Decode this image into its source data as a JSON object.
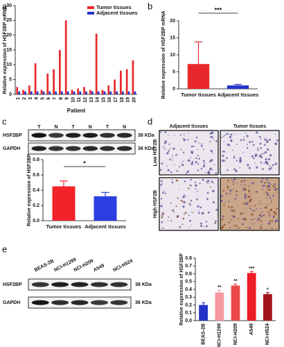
{
  "panel_labels": [
    "a",
    "b",
    "c",
    "d",
    "e"
  ],
  "chart_data": [
    {
      "type": "bar",
      "ylabel": "Relative expression of HSF2BP mRNA",
      "xlabel": "Patient",
      "categories": [
        "1",
        "2",
        "3",
        "4",
        "5",
        "6",
        "7",
        "8",
        "9",
        "10",
        "11",
        "12",
        "13",
        "14",
        "15",
        "16",
        "17",
        "18",
        "19",
        "20"
      ],
      "series": [
        {
          "name": "Tumor tissues",
          "color": "#e8272a",
          "values": [
            2.5,
            1.5,
            3,
            10.5,
            1.5,
            7,
            8.5,
            15,
            25,
            1.5,
            2,
            2.5,
            1.5,
            20.5,
            1.5,
            3,
            5,
            8,
            8.5,
            11.5
          ]
        },
        {
          "name": "Adjacent tissues",
          "color": "#2234c8",
          "values": [
            1,
            1,
            1,
            1,
            1,
            1,
            1,
            1,
            1,
            1,
            1,
            1,
            1,
            1,
            1,
            1,
            1,
            1,
            1,
            1
          ]
        }
      ],
      "ylim": [
        0,
        30
      ],
      "yticks": [
        0,
        5,
        10,
        15,
        20,
        25,
        30
      ],
      "legend": "upper right"
    },
    {
      "type": "bar",
      "ylabel": "Relative expression of HSF2BP mRNA",
      "categories": [
        "Tumor tissues",
        "Adjacent tissues"
      ],
      "values": [
        7.3,
        1.0
      ],
      "errors": [
        6.5,
        0.3
      ],
      "colors": [
        "#e8272a",
        "#2234c8"
      ],
      "comparison_label": "***",
      "ylim": [
        0,
        20
      ],
      "yticks": [
        0,
        5,
        10,
        15,
        20
      ]
    },
    {
      "type": "bar",
      "ylabel": "Relative expression of HSF2BP",
      "categories": [
        "Tumor tissues",
        "Adjacent tissues"
      ],
      "values": [
        0.45,
        0.32
      ],
      "errors": [
        0.07,
        0.05
      ],
      "colors": [
        "#f2242a",
        "#2b3fe0"
      ],
      "comparison_label": "*",
      "ylim": [
        0,
        0.8
      ],
      "yticks": [
        {
          "value": 0,
          "label": "0.0"
        },
        0.2,
        0.4,
        0.6,
        0.8
      ]
    },
    {
      "type": "bar",
      "ylabel": "Relative expression of HSF2BP",
      "categories": [
        "BEAS-2B",
        "NCI-H1299",
        "NCI-H209",
        "A549",
        "NCI-H524"
      ],
      "values": [
        0.2,
        0.36,
        0.45,
        0.61,
        0.34
      ],
      "errors": [
        0.03,
        0.03,
        0.02,
        0.02,
        0.02
      ],
      "colors": [
        "#2234c8",
        "#f59aa0",
        "#ec4a4a",
        "#ee1c24",
        "#a3141b"
      ],
      "bar_labels": [
        null,
        "**",
        "**",
        "***",
        "*"
      ],
      "ylim": [
        0,
        0.8
      ],
      "yticks": [
        {
          "value": 0,
          "label": "0.0"
        },
        0.1,
        0.2,
        0.3,
        0.4,
        0.5,
        0.6,
        0.7,
        0.8
      ]
    }
  ],
  "blot_c": {
    "lanes": [
      "T",
      "N",
      "T",
      "N",
      "T",
      "N"
    ],
    "rows": [
      {
        "protein": "HSF2BP",
        "size": "38 KDa"
      },
      {
        "protein": "GAPDH",
        "size": "36 KDa"
      }
    ]
  },
  "histology": {
    "columns": [
      "Adjacent tissues",
      "Tumor tissues"
    ],
    "rows": [
      "Low HSF2B",
      "High HSF2B"
    ]
  },
  "blot_e": {
    "lanes": [
      "BEAS-2B",
      "NCI-H1299",
      "NCI-H209",
      "A549",
      "NCI-H524"
    ],
    "rows": [
      {
        "protein": "HSF2BP",
        "size": "38 KDa"
      },
      {
        "protein": "GAPDH",
        "size": "36 KDa"
      }
    ]
  }
}
